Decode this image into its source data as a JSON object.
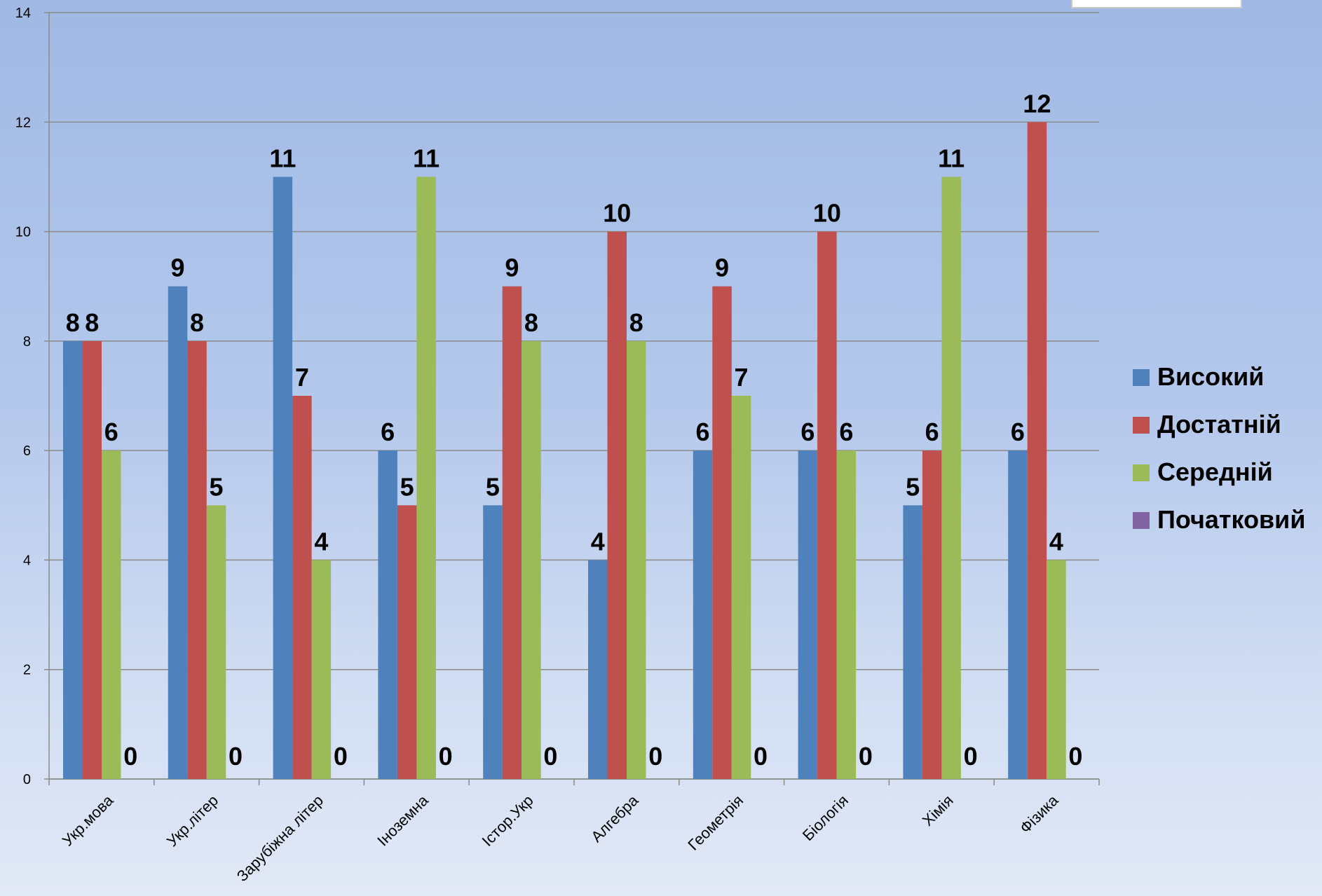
{
  "chart_data": {
    "type": "bar",
    "title": "",
    "xlabel": "",
    "ylabel": "",
    "ylim": [
      0,
      14
    ],
    "yticks": [
      0,
      2,
      4,
      6,
      8,
      10,
      12,
      14
    ],
    "grid": true,
    "legend_position": "right",
    "categories": [
      "Укр.мова",
      "Укр.літер",
      "Зарубіжна літер",
      "Іноземна",
      "Істор.Укр",
      "Алгебра",
      "Геометрія",
      "Біологія",
      "Хімія",
      "Фізика"
    ],
    "series": [
      {
        "name": "Високий",
        "color": "#4f81bd",
        "values": [
          8,
          9,
          11,
          6,
          5,
          4,
          6,
          6,
          5,
          6
        ]
      },
      {
        "name": "Достатній",
        "color": "#c0504d",
        "values": [
          8,
          8,
          7,
          5,
          9,
          10,
          9,
          10,
          6,
          12
        ]
      },
      {
        "name": "Середній",
        "color": "#9bbb59",
        "values": [
          6,
          5,
          4,
          11,
          8,
          8,
          7,
          6,
          11,
          4
        ]
      },
      {
        "name": "Початковий",
        "color": "#8064a2",
        "values": [
          0,
          0,
          0,
          0,
          0,
          0,
          0,
          0,
          0,
          0
        ]
      }
    ]
  }
}
